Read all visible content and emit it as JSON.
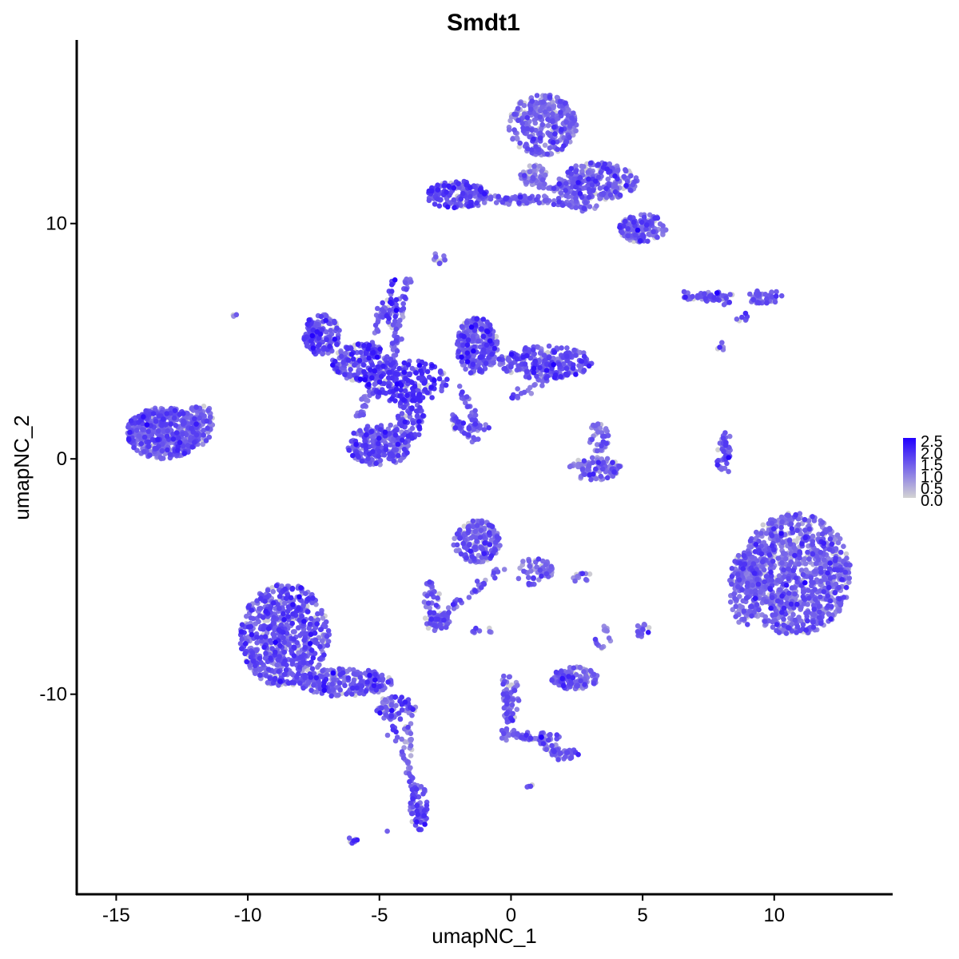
{
  "chart_data": {
    "type": "scatter",
    "title": "Smdt1",
    "xlabel": "umapNC_1",
    "ylabel": "umapNC_2",
    "xlim": [
      -16.5,
      14.5
    ],
    "ylim": [
      -18.5,
      17.8
    ],
    "x_ticks": [
      -15,
      -10,
      -5,
      0,
      5,
      10
    ],
    "y_ticks": [
      -10,
      0,
      10
    ],
    "x_tick_labels": [
      "-15",
      "-10",
      "-5",
      "0",
      "5",
      "10"
    ],
    "y_tick_labels": [
      "-10",
      "0",
      "10"
    ],
    "grid": false,
    "legend": {
      "placement": "right",
      "type": "colorbar",
      "min": 0.0,
      "max": 2.5,
      "labels": [
        "2.5",
        "2.0",
        "1.5",
        "1.0",
        "0.5",
        "0.0"
      ],
      "low_color": "#d3d3d3",
      "high_color": "#2200ff"
    },
    "clusters": [
      {
        "cx": -13.2,
        "cy": 1.1,
        "rx": 1.4,
        "ry": 1.1,
        "n": 520,
        "mean": 1.3
      },
      {
        "cx": -11.8,
        "cy": 1.5,
        "rx": 0.5,
        "ry": 0.9,
        "n": 90,
        "mean": 1.2
      },
      {
        "cx": -10.5,
        "cy": 6.1,
        "rx": 0.1,
        "ry": 0.1,
        "n": 3,
        "mean": 1.2
      },
      {
        "cx": -7.2,
        "cy": 5.3,
        "rx": 0.7,
        "ry": 0.9,
        "n": 160,
        "mean": 1.5
      },
      {
        "cx": -5.6,
        "cy": 4.1,
        "rx": 1.2,
        "ry": 0.8,
        "n": 170,
        "mean": 1.6
      },
      {
        "cx": -4.0,
        "cy": 3.3,
        "rx": 1.6,
        "ry": 0.9,
        "n": 200,
        "mean": 1.7
      },
      {
        "cx": -4.5,
        "cy": 6.5,
        "rx": 0.25,
        "ry": 1.2,
        "n": 35,
        "mean": 1.6
      },
      {
        "cx": -5.0,
        "cy": 0.6,
        "rx": 1.2,
        "ry": 0.9,
        "n": 220,
        "mean": 1.4
      },
      {
        "cx": -3.8,
        "cy": 1.8,
        "rx": 0.5,
        "ry": 1.0,
        "n": 80,
        "mean": 1.5
      },
      {
        "cx": -1.3,
        "cy": 4.8,
        "rx": 0.8,
        "ry": 1.2,
        "n": 260,
        "mean": 1.4
      },
      {
        "cx": 1.3,
        "cy": 4.1,
        "rx": 1.8,
        "ry": 0.7,
        "n": 260,
        "mean": 1.4
      },
      {
        "cx": -1.5,
        "cy": 1.3,
        "rx": 0.8,
        "ry": 0.3,
        "n": 25,
        "mean": 1.3
      },
      {
        "cx": 3.3,
        "cy": 0.9,
        "rx": 0.4,
        "ry": 0.6,
        "n": 40,
        "mean": 1.1
      },
      {
        "cx": 3.2,
        "cy": -0.4,
        "rx": 1.0,
        "ry": 0.5,
        "n": 90,
        "mean": 1.2
      },
      {
        "cx": -2.0,
        "cy": 11.2,
        "rx": 1.2,
        "ry": 0.6,
        "n": 150,
        "mean": 1.5
      },
      {
        "cx": 0.4,
        "cy": 11.0,
        "rx": 1.2,
        "ry": 0.2,
        "n": 35,
        "mean": 1.4
      },
      {
        "cx": 1.2,
        "cy": 14.2,
        "rx": 1.3,
        "ry": 1.3,
        "n": 320,
        "mean": 1.2
      },
      {
        "cx": 3.3,
        "cy": 11.8,
        "rx": 1.5,
        "ry": 0.8,
        "n": 260,
        "mean": 1.3
      },
      {
        "cx": 5.0,
        "cy": 9.8,
        "rx": 0.9,
        "ry": 0.6,
        "n": 150,
        "mean": 1.3
      },
      {
        "cx": 0.9,
        "cy": 12.0,
        "rx": 0.5,
        "ry": 0.5,
        "n": 40,
        "mean": 0.9
      },
      {
        "cx": -2.8,
        "cy": 8.5,
        "rx": 0.3,
        "ry": 0.25,
        "n": 12,
        "mean": 1.2
      },
      {
        "cx": 7.5,
        "cy": 6.9,
        "rx": 1.0,
        "ry": 0.2,
        "n": 40,
        "mean": 1.4
      },
      {
        "cx": 9.6,
        "cy": 6.9,
        "rx": 0.7,
        "ry": 0.3,
        "n": 45,
        "mean": 1.3
      },
      {
        "cx": 8.8,
        "cy": 6.0,
        "rx": 0.3,
        "ry": 0.2,
        "n": 8,
        "mean": 1.2
      },
      {
        "cx": 8.0,
        "cy": 4.7,
        "rx": 0.2,
        "ry": 0.3,
        "n": 5,
        "mean": 1.3
      },
      {
        "cx": 8.1,
        "cy": 0.2,
        "rx": 0.3,
        "ry": 0.9,
        "n": 30,
        "mean": 1.3
      },
      {
        "cx": 10.8,
        "cy": -4.9,
        "rx": 2.1,
        "ry": 2.6,
        "n": 1000,
        "mean": 1.2
      },
      {
        "cx": 8.9,
        "cy": -5.5,
        "rx": 0.6,
        "ry": 1.6,
        "n": 160,
        "mean": 1.2
      },
      {
        "cx": -1.3,
        "cy": -3.5,
        "rx": 0.9,
        "ry": 0.9,
        "n": 180,
        "mean": 1.3
      },
      {
        "cx": 0.9,
        "cy": -4.8,
        "rx": 0.7,
        "ry": 0.6,
        "n": 60,
        "mean": 1.2
      },
      {
        "cx": -3.0,
        "cy": -6.0,
        "rx": 0.3,
        "ry": 1.0,
        "n": 30,
        "mean": 1.3
      },
      {
        "cx": -2.8,
        "cy": -6.9,
        "rx": 0.5,
        "ry": 0.4,
        "n": 50,
        "mean": 1.3
      },
      {
        "cx": -1.0,
        "cy": -7.3,
        "rx": 0.5,
        "ry": 0.15,
        "n": 8,
        "mean": 1.2
      },
      {
        "cx": 2.6,
        "cy": -5.0,
        "rx": 0.5,
        "ry": 0.2,
        "n": 12,
        "mean": 1.2
      },
      {
        "cx": 5.0,
        "cy": -7.3,
        "rx": 0.3,
        "ry": 0.3,
        "n": 18,
        "mean": 1.3
      },
      {
        "cx": 2.4,
        "cy": -9.3,
        "rx": 0.9,
        "ry": 0.5,
        "n": 120,
        "mean": 1.3
      },
      {
        "cx": 3.5,
        "cy": -7.6,
        "rx": 0.3,
        "ry": 0.5,
        "n": 15,
        "mean": 1.0
      },
      {
        "cx": -8.6,
        "cy": -7.5,
        "rx": 1.7,
        "ry": 2.2,
        "n": 650,
        "mean": 1.4
      },
      {
        "cx": -6.3,
        "cy": -9.5,
        "rx": 1.8,
        "ry": 0.6,
        "n": 220,
        "mean": 1.4
      },
      {
        "cx": -4.4,
        "cy": -10.6,
        "rx": 0.8,
        "ry": 0.5,
        "n": 70,
        "mean": 1.3
      },
      {
        "cx": -3.9,
        "cy": -12.3,
        "rx": 0.2,
        "ry": 1.2,
        "n": 25,
        "mean": 1.0
      },
      {
        "cx": -3.5,
        "cy": -14.8,
        "rx": 0.35,
        "ry": 1.0,
        "n": 70,
        "mean": 1.4
      },
      {
        "cx": -6.0,
        "cy": -16.2,
        "rx": 0.2,
        "ry": 0.15,
        "n": 8,
        "mean": 1.5
      },
      {
        "cx": -4.7,
        "cy": -15.8,
        "rx": 0.05,
        "ry": 0.05,
        "n": 1,
        "mean": 1.6
      },
      {
        "cx": 0.0,
        "cy": -10.2,
        "rx": 0.3,
        "ry": 1.0,
        "n": 40,
        "mean": 1.3
      },
      {
        "cx": 1.0,
        "cy": -11.8,
        "rx": 0.9,
        "ry": 0.2,
        "n": 30,
        "mean": 1.3
      },
      {
        "cx": 2.0,
        "cy": -12.5,
        "rx": 0.6,
        "ry": 0.3,
        "n": 30,
        "mean": 1.3
      },
      {
        "cx": 0.7,
        "cy": -13.9,
        "rx": 0.15,
        "ry": 0.1,
        "n": 4,
        "mean": 1.3
      }
    ],
    "strands": [
      {
        "x1": -3.9,
        "y1": 7.6,
        "x2": -4.6,
        "y2": 3.8,
        "n": 50
      },
      {
        "x1": -4.8,
        "y1": 6.6,
        "x2": -5.5,
        "y2": 4.3,
        "n": 30
      },
      {
        "x1": -2.0,
        "y1": 3.0,
        "x2": -1.2,
        "y2": 1.4,
        "n": 25
      },
      {
        "x1": -2.3,
        "y1": 1.8,
        "x2": -1.2,
        "y2": 0.6,
        "n": 30
      },
      {
        "x1": -5.8,
        "y1": 1.8,
        "x2": -5.0,
        "y2": 3.8,
        "n": 30
      },
      {
        "x1": -1.3,
        "y1": 11.2,
        "x2": 3.2,
        "y2": 10.8,
        "n": 50
      },
      {
        "x1": 3.4,
        "y1": 10.5,
        "x2": 1.0,
        "y2": 11.2,
        "n": 20
      },
      {
        "x1": 0.3,
        "y1": 12.0,
        "x2": 2.6,
        "y2": 11.0,
        "n": 30
      },
      {
        "x1": 8.3,
        "y1": 1.2,
        "x2": 7.9,
        "y2": -0.8,
        "n": 15
      },
      {
        "x1": -0.2,
        "y1": -4.5,
        "x2": -2.8,
        "y2": -6.8,
        "n": 40
      },
      {
        "x1": -4.6,
        "y1": -10.8,
        "x2": -3.6,
        "y2": -14.2,
        "n": 25
      },
      {
        "x1": -0.2,
        "y1": -9.2,
        "x2": -0.2,
        "y2": -12.0,
        "n": 35
      },
      {
        "x1": 0.0,
        "y1": -11.6,
        "x2": 2.4,
        "y2": -12.6,
        "n": 40
      },
      {
        "x1": 6.4,
        "y1": 7.0,
        "x2": 8.3,
        "y2": 6.6,
        "n": 20
      },
      {
        "x1": 0.0,
        "y1": 2.5,
        "x2": 1.5,
        "y2": 3.5,
        "n": 20
      }
    ]
  }
}
